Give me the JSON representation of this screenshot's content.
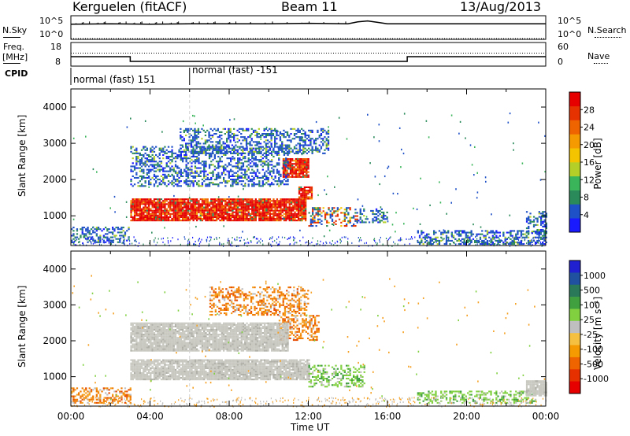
{
  "header": {
    "station": "Kerguelen (fitACF)",
    "beam": "Beam 11",
    "date": "13/Aug/2013"
  },
  "top_panels": {
    "nsky_label": "N.Sky",
    "nsky_ticks": [
      "10^5",
      "10^0"
    ],
    "nsearch_label": "N.Search",
    "nsearch_ticks": [
      "10^5",
      "10^0"
    ],
    "freq_label": "Freq.",
    "freq_unit": "[MHz]",
    "freq_ticks": [
      "18",
      "8"
    ],
    "nave_label": "Nave",
    "nave_ticks": [
      "60",
      "0"
    ],
    "cpid_label": "CPID",
    "cpid_segments": [
      {
        "start": 0,
        "end": 6,
        "name": "normal (fast) 151"
      },
      {
        "start": 6,
        "end": 24,
        "name": "normal (fast) -151"
      }
    ]
  },
  "chart_data": [
    {
      "type": "line",
      "panel": "noise",
      "x_range": [
        0,
        24
      ],
      "series": [
        {
          "name": "N.Sky",
          "x": [
            0,
            2,
            4,
            6,
            8,
            10,
            12,
            14,
            14.5,
            15,
            15.5,
            16,
            18,
            20,
            22,
            24
          ],
          "y": [
            3.2,
            3.3,
            3.2,
            3.3,
            3.3,
            3.3,
            3.4,
            3.3,
            3.7,
            3.9,
            3.6,
            3.3,
            3.3,
            3.3,
            3.3,
            3.3
          ]
        },
        {
          "name": "N.Search",
          "x": [
            0,
            24
          ],
          "y": [
            0,
            0
          ]
        }
      ]
    },
    {
      "type": "line",
      "panel": "frequency",
      "x_range": [
        0,
        24
      ],
      "series": [
        {
          "name": "Freq.",
          "x": [
            0,
            3,
            3,
            17,
            17,
            24
          ],
          "y": [
            12,
            12,
            10,
            10,
            12,
            12
          ]
        },
        {
          "name": "Nave",
          "x": [
            0,
            24
          ],
          "y": [
            33,
            33
          ]
        }
      ]
    },
    {
      "type": "heatmap",
      "panel": "power",
      "xlabel": "",
      "ylabel": "Slant Range [km]",
      "xlim": [
        0,
        24
      ],
      "ylim": [
        180,
        4500
      ],
      "y_ticks": [
        1000,
        2000,
        3000,
        4000
      ],
      "colorbar": {
        "label": "Power [dB]",
        "ticks": [
          "4",
          "8",
          "12",
          "16",
          "20",
          "24",
          "28"
        ],
        "colors": [
          "#1a1aff",
          "#1e50c8",
          "#2a8a5a",
          "#3ab55a",
          "#b4d028",
          "#f5c400",
          "#f59a00",
          "#f06400",
          "#e63200",
          "#e60000"
        ]
      },
      "echo_regions": [
        {
          "t0": 3.0,
          "t1": 11.9,
          "r0": 850,
          "r1": 1450,
          "level": "high"
        },
        {
          "t0": 10.7,
          "t1": 12.0,
          "r0": 2050,
          "r1": 2550,
          "level": "high"
        },
        {
          "t0": 11.5,
          "t1": 12.2,
          "r0": 1450,
          "r1": 1800,
          "level": "high"
        },
        {
          "t0": 12.0,
          "t1": 14.5,
          "r0": 700,
          "r1": 1200,
          "level": "mid"
        },
        {
          "t0": 3.0,
          "t1": 11.0,
          "r0": 1800,
          "r1": 2900,
          "level": "low"
        },
        {
          "t0": 5.5,
          "t1": 13.0,
          "r0": 2700,
          "r1": 3400,
          "level": "low"
        },
        {
          "t0": 0.0,
          "t1": 3.0,
          "r0": 250,
          "r1": 700,
          "level": "low"
        },
        {
          "t0": 14.5,
          "t1": 16.0,
          "r0": 800,
          "r1": 1200,
          "level": "low"
        },
        {
          "t0": 17.5,
          "t1": 24.0,
          "r0": 200,
          "r1": 600,
          "level": "low"
        },
        {
          "t0": 23.0,
          "t1": 24.0,
          "r0": 500,
          "r1": 1100,
          "level": "low"
        }
      ]
    },
    {
      "type": "heatmap",
      "panel": "velocity",
      "xlabel": "Time UT",
      "ylabel": "Slant Range [km]",
      "xlim": [
        0,
        24
      ],
      "ylim": [
        180,
        4500
      ],
      "x_ticks": [
        "00:00",
        "04:00",
        "08:00",
        "12:00",
        "16:00",
        "20:00",
        "00:00"
      ],
      "y_ticks": [
        1000,
        2000,
        3000,
        4000
      ],
      "colorbar": {
        "label": "Velocity [m s⁻¹]",
        "ticks": [
          "1000",
          "500",
          "100",
          "25",
          "-25",
          "-100",
          "-500",
          "-1000"
        ],
        "colors": [
          "#2020d0",
          "#2050a0",
          "#2a7a5a",
          "#40a040",
          "#80d040",
          "#bfbfbf",
          "#f5c040",
          "#f59a00",
          "#f06400",
          "#e63000",
          "#e60000"
        ]
      },
      "echo_regions": [
        {
          "t0": 3.0,
          "t1": 12.0,
          "r0": 900,
          "r1": 1450,
          "level": "ground"
        },
        {
          "t0": 12.0,
          "t1": 14.8,
          "r0": 700,
          "r1": 1300,
          "level": "green"
        },
        {
          "t0": 10.5,
          "t1": 12.5,
          "r0": 2000,
          "r1": 2700,
          "level": "orange"
        },
        {
          "t0": 3.0,
          "t1": 11.0,
          "r0": 1700,
          "r1": 2500,
          "level": "ground"
        },
        {
          "t0": 7.0,
          "t1": 12.0,
          "r0": 2700,
          "r1": 3500,
          "level": "orange"
        },
        {
          "t0": 0.0,
          "t1": 3.0,
          "r0": 250,
          "r1": 700,
          "level": "orange"
        },
        {
          "t0": 17.5,
          "t1": 23.5,
          "r0": 250,
          "r1": 600,
          "level": "green"
        },
        {
          "t0": 23.0,
          "t1": 24.0,
          "r0": 450,
          "r1": 900,
          "level": "ground"
        }
      ]
    }
  ]
}
